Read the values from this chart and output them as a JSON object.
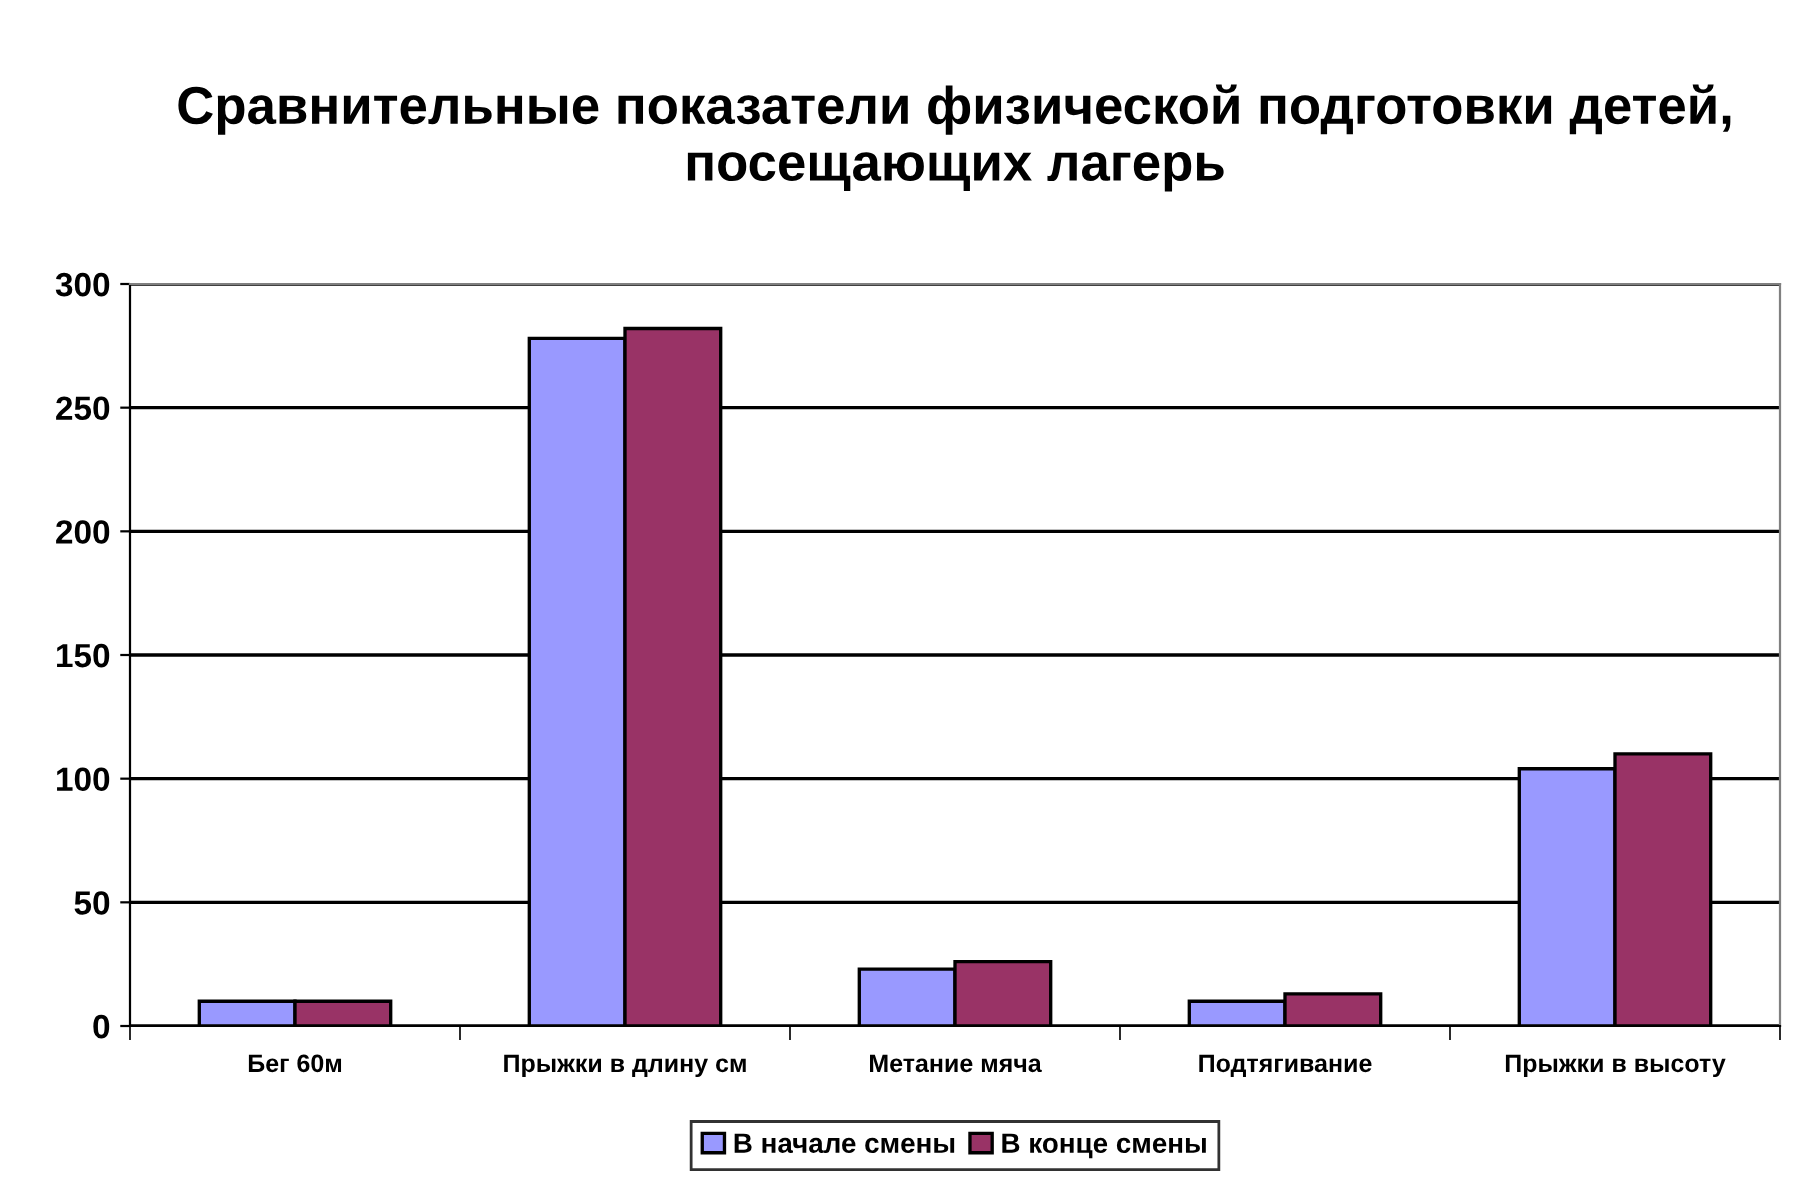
{
  "chart_data": {
    "type": "bar",
    "title": "Сравнительные показатели физической подготовки детей, посещающих лагерь",
    "categories": [
      "Бег 60м",
      "Прыжки в длину см",
      "Метание мяча",
      "Подтягивание",
      "Прыжки в высоту"
    ],
    "series": [
      {
        "name": "В начале смены",
        "color": "#9999ff",
        "values": [
          10,
          278,
          23,
          10,
          104
        ]
      },
      {
        "name": "В конце смены",
        "color": "#993366",
        "values": [
          10,
          282,
          26,
          13,
          110
        ]
      }
    ],
    "ylim": [
      0,
      300
    ],
    "yticks": [
      0,
      50,
      100,
      150,
      200,
      250,
      300
    ],
    "grid": "y",
    "legend": "bottom"
  }
}
